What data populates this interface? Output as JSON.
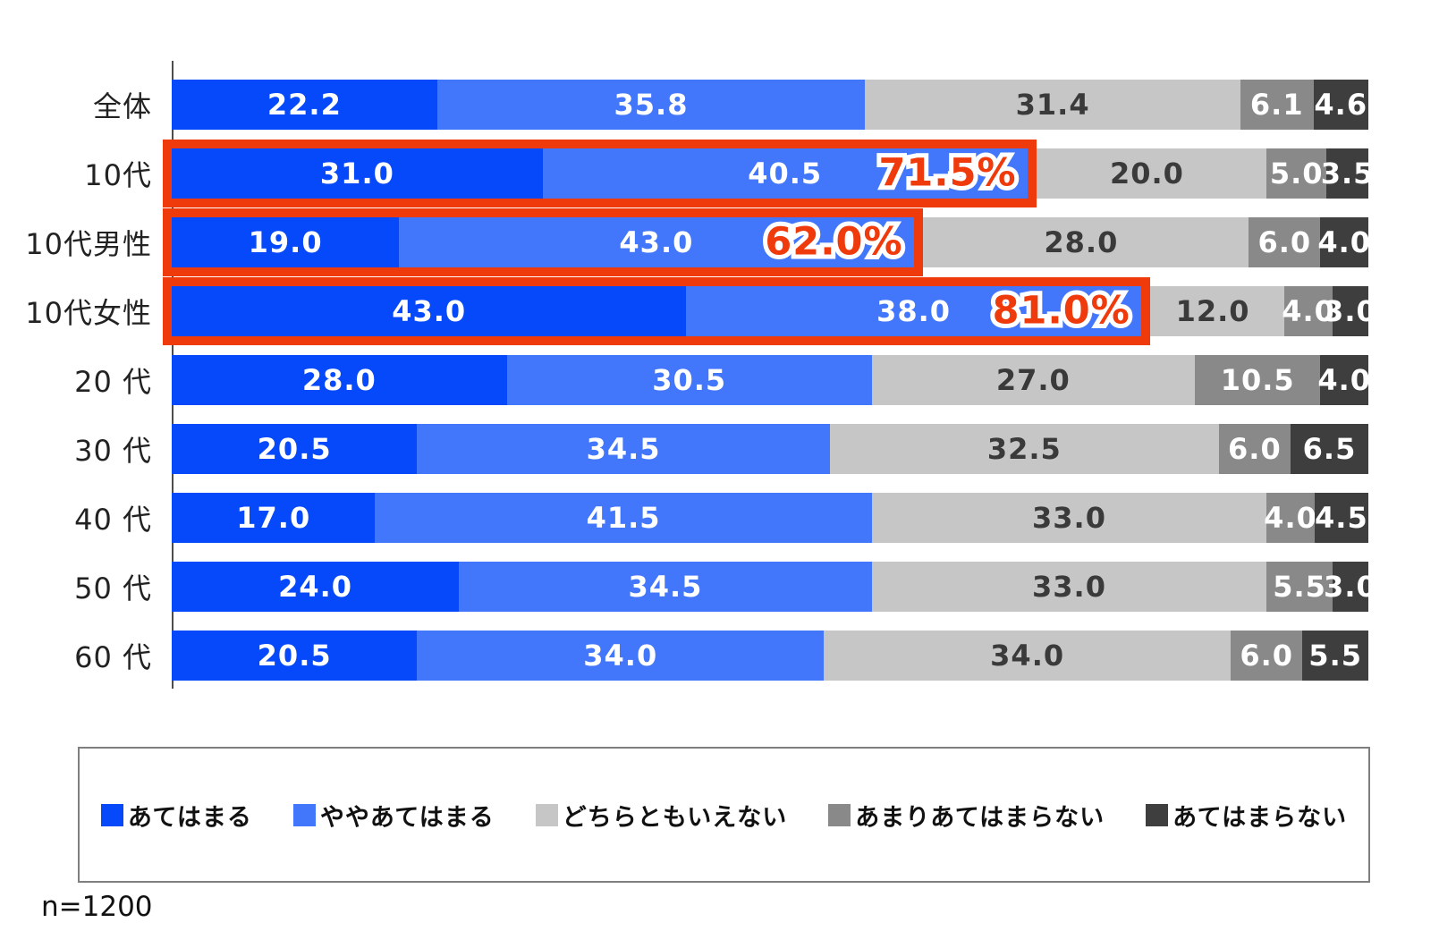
{
  "chart_data": {
    "type": "bar",
    "orientation": "horizontal",
    "stacked": true,
    "value_unit": "%",
    "xlim": [
      0,
      100
    ],
    "grid": false,
    "legend_position": "bottom",
    "note": "n=1200",
    "categories": [
      "全体",
      "10代",
      "10代男性",
      "10代女性",
      "20 代",
      "30 代",
      "40 代",
      "50 代",
      "60 代"
    ],
    "series": [
      {
        "name": "あてはまる",
        "color": "#0549fa",
        "label_color": "#ffffff",
        "values": [
          22.2,
          31.0,
          19.0,
          43.0,
          28.0,
          20.5,
          17.0,
          24.0,
          20.5
        ]
      },
      {
        "name": "ややあてはまる",
        "color": "#4377fb",
        "label_color": "#ffffff",
        "values": [
          35.8,
          40.5,
          43.0,
          38.0,
          30.5,
          34.5,
          41.5,
          34.5,
          34.0
        ]
      },
      {
        "name": "どちらともいえない",
        "color": "#c6c6c6",
        "label_color": "#3a3a3a",
        "values": [
          31.4,
          20.0,
          28.0,
          12.0,
          27.0,
          32.5,
          33.0,
          33.0,
          34.0
        ]
      },
      {
        "name": "あまりあてはまらない",
        "color": "#898989",
        "label_color": "#ffffff",
        "values": [
          6.1,
          5.0,
          6.0,
          4.0,
          10.5,
          6.0,
          4.0,
          5.5,
          6.0
        ]
      },
      {
        "name": "あてはまらない",
        "color": "#3e3e3e",
        "label_color": "#ffffff",
        "values": [
          4.6,
          3.5,
          4.0,
          3.0,
          4.0,
          6.5,
          4.5,
          3.0,
          5.5
        ]
      }
    ],
    "highlights": [
      {
        "category_index": 1,
        "label": "71.5%",
        "value": 71.5,
        "span_series": [
          0,
          1
        ]
      },
      {
        "category_index": 2,
        "label": "62.0%",
        "value": 62.0,
        "span_series": [
          0,
          1
        ]
      },
      {
        "category_index": 3,
        "label": "81.0%",
        "value": 81.0,
        "span_series": [
          0,
          1
        ]
      }
    ],
    "highlight_color": "#ef3a0c"
  },
  "legend": {
    "items": [
      {
        "label": "あてはまる",
        "color": "#0549fa"
      },
      {
        "label": "ややあてはまる",
        "color": "#4377fb"
      },
      {
        "label": "どちらともいえない",
        "color": "#c6c6c6"
      },
      {
        "label": "あまりあてはまらない",
        "color": "#898989"
      },
      {
        "label": "あてはまらない",
        "color": "#3e3e3e"
      }
    ]
  },
  "footnote": {
    "sample_size": "n=1200"
  }
}
